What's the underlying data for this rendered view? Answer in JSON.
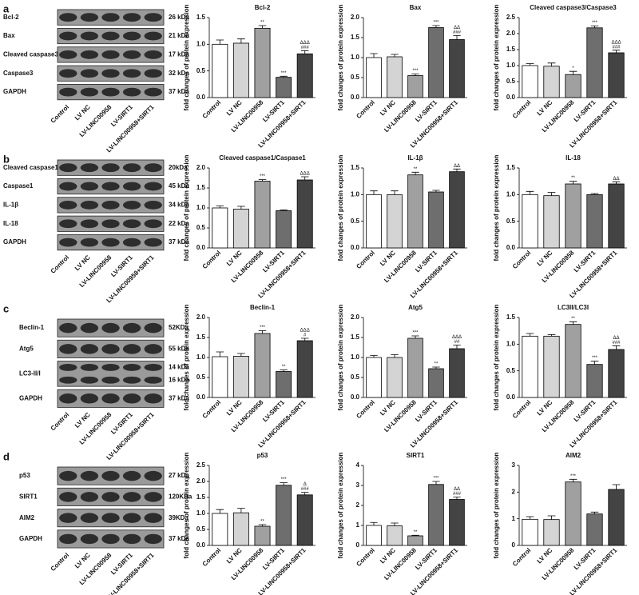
{
  "panels": [
    {
      "letter": "a",
      "blot": {
        "rows": [
          {
            "name": "Bcl-2",
            "sizes": [
              "26 kDa"
            ]
          },
          {
            "name": "Bax",
            "sizes": [
              "21 kDa"
            ]
          },
          {
            "name": "Cleaved caspase3",
            "sizes": [
              "17 kDa"
            ]
          },
          {
            "name": "Caspase3",
            "sizes": [
              "32 kDa"
            ]
          },
          {
            "name": "GAPDH",
            "sizes": [
              "37 kDa"
            ]
          }
        ],
        "lanes": [
          "Control",
          "LV NC",
          "LV-LINC00958",
          "LV-SIRT1",
          "LV-LINC00958+SIRT1"
        ]
      }
    },
    {
      "letter": "b",
      "blot": {
        "rows": [
          {
            "name": "Cleaved caspase1",
            "sizes": [
              "20kDa"
            ]
          },
          {
            "name": "Caspase1",
            "sizes": [
              "45 kDa"
            ]
          },
          {
            "name": "IL-1β",
            "sizes": [
              "34 kDa"
            ]
          },
          {
            "name": "IL-18",
            "sizes": [
              "22 kDa"
            ]
          },
          {
            "name": "GAPDH",
            "sizes": [
              "37 kDa"
            ]
          }
        ],
        "lanes": [
          "Control",
          "LV NC",
          "LV-LINC00958",
          "LV-SIRT1",
          "LV-LINC00958+SIRT1"
        ]
      }
    },
    {
      "letter": "c",
      "blot": {
        "rows": [
          {
            "name": "Beclin-1",
            "sizes": [
              "52KDa"
            ]
          },
          {
            "name": "Atg5",
            "sizes": [
              "55 kDa"
            ]
          },
          {
            "name": "LC3-II/I",
            "sizes": [
              "14 kDa",
              "16 kDa"
            ]
          },
          {
            "name": "GAPDH",
            "sizes": [
              "37 kDa"
            ]
          }
        ],
        "lanes": [
          "Control",
          "LV NC",
          "LV-LINC00958",
          "LV-SIRT1",
          "LV-LINC00958+SIRT1"
        ]
      }
    },
    {
      "letter": "d",
      "blot": {
        "rows": [
          {
            "name": "p53",
            "sizes": [
              "27 kDa"
            ]
          },
          {
            "name": "SIRT1",
            "sizes": [
              "120KDa"
            ]
          },
          {
            "name": "AIM2",
            "sizes": [
              "39KDa"
            ]
          },
          {
            "name": "GAPDH",
            "sizes": [
              "37 kDa"
            ]
          }
        ],
        "lanes": [
          "Control",
          "LV NC",
          "LV-LINC00958",
          "LV-SIRT1",
          "LV-LINC00958+SIRT1"
        ]
      }
    }
  ],
  "chart_data": [
    {
      "type": "bar",
      "title": "Bcl-2",
      "ylabel": "fold changes of protein expression",
      "categories": [
        "Control",
        "LV NC",
        "LV-LINC00958",
        "LV-SIRT1",
        "LV-LINC00958+SIRT1"
      ],
      "values": [
        1.0,
        1.02,
        1.3,
        0.38,
        0.82
      ],
      "errors": [
        0.08,
        0.08,
        0.05,
        0.02,
        0.06
      ],
      "colors": [
        "#ffffff",
        "#d4d4d4",
        "#a0a0a0",
        "#6e6e6e",
        "#444444"
      ],
      "ylim": [
        0,
        1.5
      ],
      "yticks": [
        {
          "value": 0,
          "label": "0.0"
        },
        0.5,
        {
          "value": 1,
          "label": "1.0"
        },
        1.5
      ],
      "annotations": [
        null,
        null,
        [
          "**"
        ],
        [
          "***"
        ],
        [
          "ΔΔΔ",
          "###"
        ]
      ]
    },
    {
      "type": "bar",
      "title": "Bax",
      "ylabel": "fold changes of protein expression",
      "categories": [
        "Control",
        "LV NC",
        "LV-LINC00958",
        "LV-SIRT1",
        "LV-LINC00958+SIRT1"
      ],
      "values": [
        1.0,
        1.02,
        0.55,
        1.75,
        1.45
      ],
      "errors": [
        0.1,
        0.06,
        0.04,
        0.05,
        0.1
      ],
      "colors": [
        "#ffffff",
        "#d4d4d4",
        "#a0a0a0",
        "#6e6e6e",
        "#444444"
      ],
      "ylim": [
        0,
        2
      ],
      "yticks": [
        {
          "value": 0,
          "label": "0.0"
        },
        0.5,
        {
          "value": 1,
          "label": "1.0"
        },
        1.5,
        {
          "value": 2,
          "label": "2.0"
        }
      ],
      "annotations": [
        null,
        null,
        [
          "***"
        ],
        [
          "***"
        ],
        [
          "ΔΔ",
          "###"
        ]
      ]
    },
    {
      "type": "bar",
      "title": "Cleaved caspase3/Caspase3",
      "ylabel": "fold changes of protein expression",
      "categories": [
        "Control",
        "LV NC",
        "LV-LINC00958",
        "LV-SIRT1",
        "LV-LINC00958+SIRT1"
      ],
      "values": [
        1.0,
        0.98,
        0.72,
        2.18,
        1.4
      ],
      "errors": [
        0.06,
        0.1,
        0.1,
        0.06,
        0.08
      ],
      "colors": [
        "#ffffff",
        "#d4d4d4",
        "#a0a0a0",
        "#6e6e6e",
        "#444444"
      ],
      "ylim": [
        0,
        2.5
      ],
      "yticks": [
        {
          "value": 0,
          "label": "0.0"
        },
        0.5,
        {
          "value": 1,
          "label": "1.0"
        },
        1.5,
        {
          "value": 2,
          "label": "2.0"
        },
        2.5
      ],
      "annotations": [
        null,
        null,
        [
          "*"
        ],
        [
          "***"
        ],
        [
          "ΔΔΔ",
          "###"
        ]
      ]
    },
    {
      "type": "bar",
      "title": "Cleaved caspase1/Caspase1",
      "ylabel": "fold changes of protein expression",
      "categories": [
        "Control",
        "LV NC",
        "LV-LINC00958",
        "LV-SIRT1",
        "LV-LINC00958+SIRT1"
      ],
      "values": [
        1.0,
        0.97,
        1.67,
        0.93,
        1.7
      ],
      "errors": [
        0.05,
        0.07,
        0.04,
        0.02,
        0.08
      ],
      "colors": [
        "#ffffff",
        "#d4d4d4",
        "#a0a0a0",
        "#6e6e6e",
        "#444444"
      ],
      "ylim": [
        0,
        2
      ],
      "yticks": [
        {
          "value": 0,
          "label": "0.0"
        },
        0.5,
        {
          "value": 1,
          "label": "1.0"
        },
        1.5,
        {
          "value": 2,
          "label": "2.0"
        }
      ],
      "annotations": [
        null,
        null,
        [
          "***"
        ],
        null,
        [
          "ΔΔΔ"
        ]
      ]
    },
    {
      "type": "bar",
      "title": "IL-1β",
      "ylabel": "fold changes of protein expression",
      "categories": [
        "Control",
        "LV NC",
        "LV-LINC00958",
        "LV-SIRT1",
        "LV-LINC00958+SIRT1"
      ],
      "values": [
        1.0,
        1.0,
        1.37,
        1.05,
        1.43
      ],
      "errors": [
        0.07,
        0.07,
        0.05,
        0.03,
        0.05
      ],
      "colors": [
        "#ffffff",
        "#d4d4d4",
        "#a0a0a0",
        "#6e6e6e",
        "#444444"
      ],
      "ylim": [
        0,
        1.5
      ],
      "yticks": [
        {
          "value": 0,
          "label": "0.0"
        },
        0.5,
        {
          "value": 1,
          "label": "1.0"
        },
        1.5
      ],
      "annotations": [
        null,
        null,
        [
          "**"
        ],
        null,
        [
          "ΔΔ"
        ]
      ]
    },
    {
      "type": "bar",
      "title": "IL-18",
      "ylabel": "fold changes of protein expression",
      "categories": [
        "Control",
        "LV NC",
        "LV-LINC00958",
        "LV-SIRT1",
        "LV-LINC00958+SIRT1"
      ],
      "values": [
        1.0,
        0.98,
        1.2,
        1.0,
        1.2
      ],
      "errors": [
        0.06,
        0.06,
        0.05,
        0.02,
        0.04
      ],
      "colors": [
        "#ffffff",
        "#d4d4d4",
        "#a0a0a0",
        "#6e6e6e",
        "#444444"
      ],
      "ylim": [
        0,
        1.5
      ],
      "yticks": [
        {
          "value": 0,
          "label": "0.0"
        },
        0.5,
        {
          "value": 1,
          "label": "1.0"
        },
        1.5
      ],
      "annotations": [
        null,
        null,
        [
          "**"
        ],
        null,
        [
          "ΔΔ"
        ]
      ]
    },
    {
      "type": "bar",
      "title": "Beclin-1",
      "ylabel": "fold changes of protein expression",
      "categories": [
        "Control",
        "LV NC",
        "LV-LINC00958",
        "LV-SIRT1",
        "LV-LINC00958+SIRT1"
      ],
      "values": [
        1.02,
        1.03,
        1.6,
        0.65,
        1.42
      ],
      "errors": [
        0.12,
        0.07,
        0.07,
        0.04,
        0.06
      ],
      "colors": [
        "#ffffff",
        "#d4d4d4",
        "#a0a0a0",
        "#6e6e6e",
        "#444444"
      ],
      "ylim": [
        0,
        2
      ],
      "yticks": [
        {
          "value": 0,
          "label": "0.0"
        },
        0.5,
        {
          "value": 1,
          "label": "1.0"
        },
        1.5,
        {
          "value": 2,
          "label": "2.0"
        }
      ],
      "annotations": [
        null,
        null,
        [
          "***"
        ],
        [
          "**"
        ],
        [
          "ΔΔΔ",
          "#"
        ]
      ]
    },
    {
      "type": "bar",
      "title": "Atg5",
      "ylabel": "fold changes of protein expression",
      "categories": [
        "Control",
        "LV NC",
        "LV-LINC00958",
        "LV-SIRT1",
        "LV-LINC00958+SIRT1"
      ],
      "values": [
        1.0,
        1.0,
        1.48,
        0.72,
        1.22
      ],
      "errors": [
        0.05,
        0.07,
        0.06,
        0.04,
        0.09
      ],
      "colors": [
        "#ffffff",
        "#d4d4d4",
        "#a0a0a0",
        "#6e6e6e",
        "#444444"
      ],
      "ylim": [
        0,
        2
      ],
      "yticks": [
        {
          "value": 0,
          "label": "0.0"
        },
        0.5,
        {
          "value": 1,
          "label": "1.0"
        },
        1.5,
        {
          "value": 2,
          "label": "2.0"
        }
      ],
      "annotations": [
        null,
        null,
        [
          "***"
        ],
        [
          "**"
        ],
        [
          "ΔΔΔ",
          "##"
        ]
      ]
    },
    {
      "type": "bar",
      "title": "LC3II/LC3I",
      "ylabel": "fold changes of protein expression",
      "categories": [
        "Control",
        "LV NC",
        "LV-LINC00958",
        "LV-SIRT1",
        "LV-LINC00958+SIRT1"
      ],
      "values": [
        1.15,
        1.15,
        1.37,
        0.62,
        0.9
      ],
      "errors": [
        0.05,
        0.03,
        0.05,
        0.06,
        0.07
      ],
      "colors": [
        "#ffffff",
        "#d4d4d4",
        "#a0a0a0",
        "#6e6e6e",
        "#444444"
      ],
      "ylim": [
        0,
        1.5
      ],
      "yticks": [
        {
          "value": 0,
          "label": "0.0"
        },
        0.5,
        {
          "value": 1,
          "label": "1.0"
        },
        1.5
      ],
      "annotations": [
        null,
        null,
        [
          "**"
        ],
        [
          "***"
        ],
        [
          "ΔΔ",
          "###"
        ]
      ]
    },
    {
      "type": "bar",
      "title": "p53",
      "ylabel": "fold changes of protein expression",
      "categories": [
        "Control",
        "LV NC",
        "LV-LINC00958",
        "LV-SIRT1",
        "LV-LINC00958+SIRT1"
      ],
      "values": [
        1.0,
        1.02,
        0.6,
        1.88,
        1.58
      ],
      "errors": [
        0.12,
        0.14,
        0.05,
        0.08,
        0.08
      ],
      "colors": [
        "#ffffff",
        "#d4d4d4",
        "#a0a0a0",
        "#6e6e6e",
        "#444444"
      ],
      "ylim": [
        0,
        2.5
      ],
      "yticks": [
        {
          "value": 0,
          "label": "0.0"
        },
        0.5,
        {
          "value": 1,
          "label": "1.0"
        },
        1.5,
        {
          "value": 2,
          "label": "2.0"
        },
        2.5
      ],
      "annotations": [
        null,
        null,
        [
          "**"
        ],
        [
          "***"
        ],
        [
          "Δ",
          "###"
        ]
      ]
    },
    {
      "type": "bar",
      "title": "SIRT1",
      "ylabel": "fold changes of protein expression",
      "categories": [
        "Control",
        "LV NC",
        "LV-LINC00958",
        "LV-SIRT1",
        "LV-LINC00958+SIRT1"
      ],
      "values": [
        1.0,
        0.98,
        0.48,
        3.05,
        2.3
      ],
      "errors": [
        0.15,
        0.14,
        0.03,
        0.15,
        0.12
      ],
      "colors": [
        "#ffffff",
        "#d4d4d4",
        "#a0a0a0",
        "#6e6e6e",
        "#444444"
      ],
      "ylim": [
        0,
        4
      ],
      "yticks": [
        0,
        1,
        2,
        3,
        4
      ],
      "annotations": [
        null,
        null,
        [
          "**"
        ],
        [
          "***"
        ],
        [
          "ΔΔ",
          "###"
        ]
      ]
    },
    {
      "type": "bar",
      "title": "AIM2",
      "ylabel": "fold changes of protein expression",
      "categories": [
        "Control",
        "LV NC",
        "LV-LINC00958",
        "LV-SIRT1",
        "LV-LINC00958+SIRT1"
      ],
      "values": [
        0.98,
        0.97,
        2.38,
        1.18,
        2.1
      ],
      "errors": [
        0.1,
        0.14,
        0.1,
        0.07,
        0.18
      ],
      "colors": [
        "#ffffff",
        "#d4d4d4",
        "#a0a0a0",
        "#6e6e6e",
        "#444444"
      ],
      "ylim": [
        0,
        3
      ],
      "yticks": [
        0,
        1,
        2,
        3
      ],
      "annotations": [
        null,
        null,
        [
          "***"
        ],
        null,
        null
      ]
    }
  ]
}
